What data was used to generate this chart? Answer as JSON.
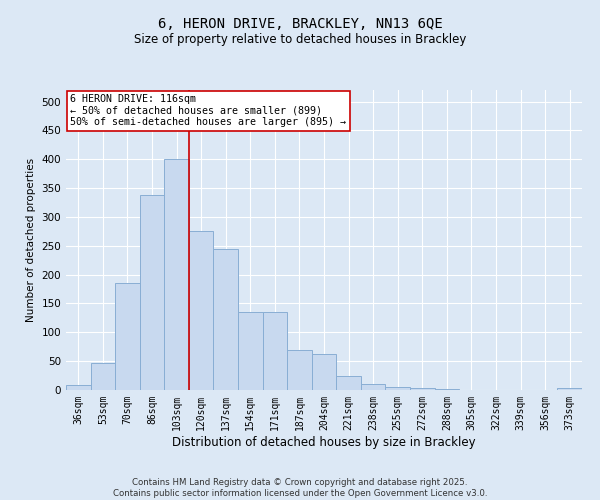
{
  "title_line1": "6, HERON DRIVE, BRACKLEY, NN13 6QE",
  "title_line2": "Size of property relative to detached houses in Brackley",
  "xlabel": "Distribution of detached houses by size in Brackley",
  "ylabel": "Number of detached properties",
  "categories": [
    "36sqm",
    "53sqm",
    "70sqm",
    "86sqm",
    "103sqm",
    "120sqm",
    "137sqm",
    "154sqm",
    "171sqm",
    "187sqm",
    "204sqm",
    "221sqm",
    "238sqm",
    "255sqm",
    "272sqm",
    "288sqm",
    "305sqm",
    "322sqm",
    "339sqm",
    "356sqm",
    "373sqm"
  ],
  "values": [
    8,
    46,
    185,
    338,
    400,
    275,
    245,
    135,
    135,
    70,
    62,
    25,
    10,
    5,
    3,
    1,
    0,
    0,
    0,
    0,
    3
  ],
  "bar_color": "#c8d9ef",
  "bar_edge_color": "#89aed4",
  "vline_x": 4.5,
  "vline_color": "#cc0000",
  "annotation_text": "6 HERON DRIVE: 116sqm\n← 50% of detached houses are smaller (899)\n50% of semi-detached houses are larger (895) →",
  "annotation_box_color": "#ffffff",
  "annotation_box_edge": "#cc0000",
  "background_color": "#dce8f5",
  "grid_color": "#ffffff",
  "footnote": "Contains HM Land Registry data © Crown copyright and database right 2025.\nContains public sector information licensed under the Open Government Licence v3.0.",
  "ylim": [
    0,
    520
  ],
  "yticks": [
    0,
    50,
    100,
    150,
    200,
    250,
    300,
    350,
    400,
    450,
    500
  ]
}
